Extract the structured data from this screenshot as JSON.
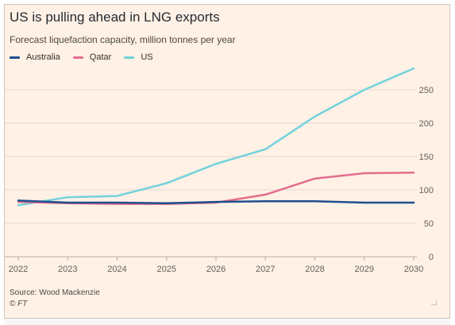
{
  "title": "US is pulling ahead in LNG exports",
  "subtitle": "Forecast liquefaction capacity, million tonnes per year",
  "source": "Source: Wood Mackenzie",
  "copyright": "© FT",
  "colors": {
    "background": "#fff1e5",
    "australia": "#1f4f8f",
    "qatar": "#e46d8e",
    "us": "#72d2dc",
    "grid": "#e6d9ce",
    "axis_text": "#66605c"
  },
  "legend": [
    {
      "label": "Australia",
      "color": "#1f4f8f"
    },
    {
      "label": "Qatar",
      "color": "#e46d8e"
    },
    {
      "label": "US",
      "color": "#72d2dc"
    }
  ],
  "chart_data": {
    "type": "line",
    "title": "US is pulling ahead in LNG exports",
    "subtitle": "Forecast liquefaction capacity, million tonnes per year",
    "x": [
      2022,
      2023,
      2024,
      2025,
      2026,
      2027,
      2028,
      2029,
      2030
    ],
    "x_tick_labels": [
      "2022",
      "2023",
      "2024",
      "2025",
      "2026",
      "2027",
      "2028",
      "2029",
      "2030"
    ],
    "y_ticks": [
      0,
      50,
      100,
      150,
      200,
      250
    ],
    "y_tick_labels": [
      "0",
      "50",
      "100",
      "150",
      "200",
      "250"
    ],
    "ylim": [
      0,
      285
    ],
    "xlim": [
      2022,
      2030
    ],
    "grid": true,
    "legend_position": "top-left",
    "y_axis_position": "right",
    "series": [
      {
        "name": "Australia",
        "color": "#1f4f8f",
        "values": [
          84,
          81,
          81,
          80,
          82,
          83,
          83,
          81,
          81
        ]
      },
      {
        "name": "Qatar",
        "color": "#e46d8e",
        "values": [
          82,
          80,
          79,
          79,
          81,
          93,
          117,
          125,
          126
        ]
      },
      {
        "name": "US",
        "color": "#72d2dc",
        "values": [
          77,
          89,
          91,
          110,
          139,
          161,
          210,
          250,
          282
        ]
      }
    ]
  }
}
